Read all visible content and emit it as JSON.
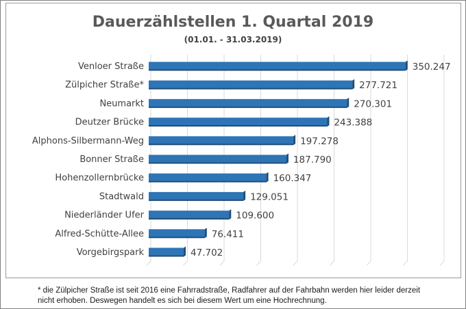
{
  "chart_data": {
    "type": "bar",
    "orientation": "horizontal",
    "title": "Dauerzählstellen 1. Quartal 2019",
    "subtitle": "(01.01. - 31.03.2019)",
    "categories": [
      "Venloer Straße",
      "Zülpicher Straße*",
      "Neumarkt",
      "Deutzer Brücke",
      "Alphons-Silbermann-Weg",
      "Bonner Straße",
      "Hohenzollernbrücke",
      "Stadtwald",
      "Niederländer Ufer",
      "Alfred-Schütte-Allee",
      "Vorgebirgspark"
    ],
    "values": [
      350247,
      277721,
      270301,
      243388,
      197278,
      187790,
      160347,
      129051,
      109600,
      76411,
      47702
    ],
    "value_labels": [
      "350.247",
      "277.721",
      "270.301",
      "243.388",
      "197.278",
      "187.790",
      "160.347",
      "129.051",
      "109.600",
      "76.411",
      "47.702"
    ],
    "xlim": [
      0,
      400000
    ],
    "grid": true,
    "legend": "none",
    "colors": {
      "bar": "#2e75b6",
      "bar_side": "#1f4e79",
      "grid": "#d9d9d9"
    }
  },
  "footnote": {
    "line1": "* die Zülpicher Straße ist seit 2016 eine Fahrradstraße, Radfahrer auf der Fahrbahn werden hier leider derzeit",
    "line2": "nicht erhoben. Deswegen handelt es sich bei diesem Wert um eine Hochrechnung."
  }
}
